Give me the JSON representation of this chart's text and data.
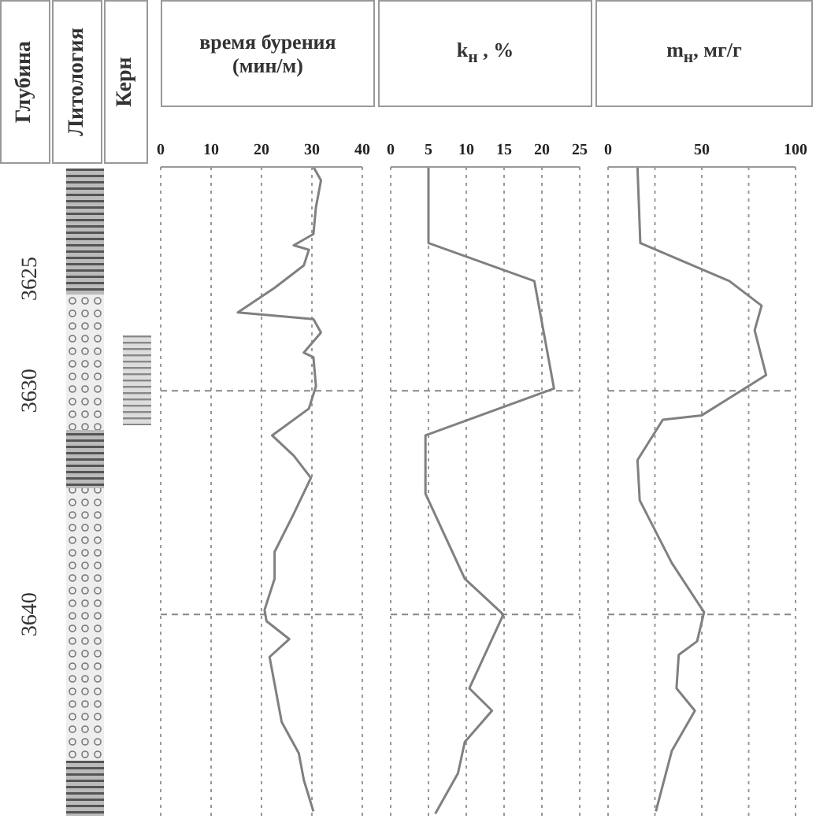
{
  "chart_data": [
    {
      "type": "line",
      "title": "время бурения (мин/м)",
      "ylabel": "Глубина",
      "annotations": [
        "Литология",
        "Керн"
      ],
      "xlim": [
        0,
        40
      ],
      "xticks": [
        0,
        10,
        20,
        30,
        40
      ],
      "ylim": [
        3649,
        3620
      ],
      "yticks": [
        3625,
        3630,
        3640
      ],
      "grid": "x",
      "ref_lines": [
        {
          "axis": "y",
          "value": 3630,
          "line_style": "dashed"
        },
        {
          "axis": "y",
          "value": 3640,
          "line_style": "dashed"
        }
      ],
      "series": [
        {
          "color": "#808080",
          "x": [
            30.3,
            31.8,
            30.8,
            30.3,
            26.4,
            29.4,
            28.4,
            22.6,
            15.3,
            20.2,
            30.3,
            31.8,
            28.4,
            30.3,
            30.8,
            29.4,
            22.1,
            26.4,
            29.8,
            26.4,
            22.6,
            22.6,
            20.6,
            21.0,
            25.5,
            21.6,
            22.6,
            24.0,
            27.4,
            28.4,
            30.3
          ],
          "values": [
            3620,
            3620.6,
            3621.8,
            3623.0,
            3623.5,
            3623.7,
            3624.4,
            3625.4,
            3626.5,
            3626.6,
            3626.8,
            3627.4,
            3628.3,
            3628.5,
            3629.8,
            3630.8,
            3632.0,
            3632.9,
            3633.9,
            3635.5,
            3637.2,
            3638.4,
            3639.8,
            3640.3,
            3641.1,
            3641.9,
            3643.1,
            3644.8,
            3646.2,
            3647.4,
            3648.8
          ]
        }
      ]
    },
    {
      "type": "line",
      "title": "k$_{н}$ , %",
      "xlim": [
        0,
        25
      ],
      "xticks": [
        0,
        5,
        10,
        15,
        20,
        25
      ],
      "ylim": [
        3649,
        3620
      ],
      "tick_labels": "x",
      "grid": "x",
      "ref_lines": [
        {
          "axis": "y",
          "value": 3630,
          "line_style": "dashed"
        },
        {
          "axis": "y",
          "value": 3640,
          "line_style": "dashed"
        }
      ],
      "series": [
        {
          "color": "#808080",
          "x": [
            5,
            5,
            19,
            21.6,
            4.6,
            4.6,
            9.8,
            14.9,
            10.4,
            13.4,
            9.8,
            8.9,
            5.9
          ],
          "values": [
            3620,
            3623.4,
            3625.1,
            3629.9,
            3632.0,
            3634.6,
            3638.4,
            3640.0,
            3643.3,
            3644.3,
            3645.7,
            3647.1,
            3648.9
          ]
        }
      ]
    },
    {
      "type": "line",
      "title": "m$_{н}$, мг/г",
      "xlim": [
        0,
        100
      ],
      "xticks": [
        0,
        {
          "value": 25,
          "label": null
        },
        50,
        {
          "value": 75,
          "label": null
        },
        100
      ],
      "ylim": [
        3649,
        3620
      ],
      "tick_labels": "x",
      "grid": "x",
      "ref_lines": [
        {
          "axis": "y",
          "value": 3630,
          "line_style": "dashed"
        },
        {
          "axis": "y",
          "value": 3640,
          "line_style": "dashed"
        }
      ],
      "series": [
        {
          "color": "#808080",
          "x": [
            15.7,
            17.2,
            64.7,
            81.9,
            78.2,
            84.3,
            50,
            29.2,
            15.7,
            16.9,
            34,
            51.2,
            47.5,
            37.7,
            36.5,
            46.3,
            34,
            25.5
          ],
          "values": [
            3620,
            3623.4,
            3625.1,
            3626.2,
            3627.3,
            3629.3,
            3631.1,
            3631.3,
            3633.1,
            3634.9,
            3637.7,
            3639.9,
            3641.2,
            3641.8,
            3643.3,
            3644.3,
            3646.1,
            3648.8
          ]
        }
      ]
    }
  ]
}
